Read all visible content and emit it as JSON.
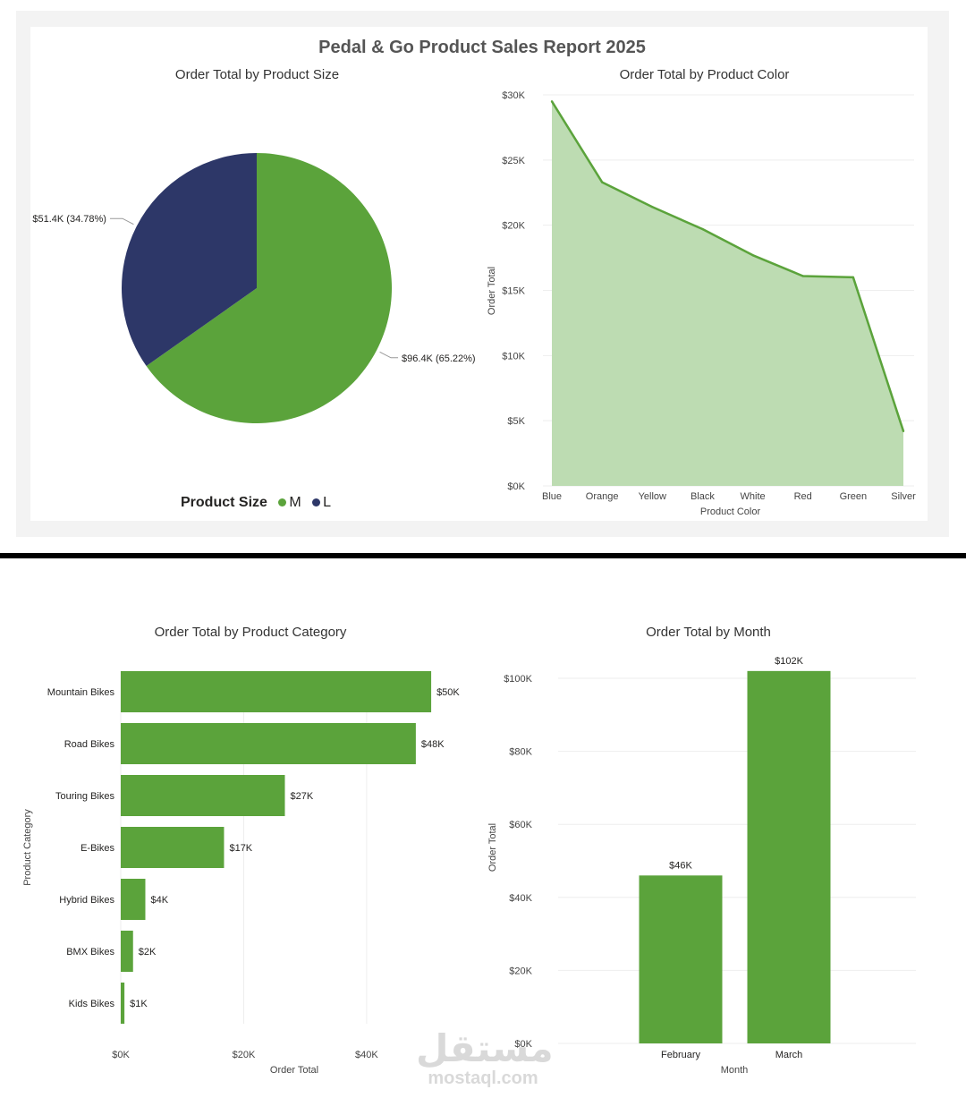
{
  "report_title": "Pedal & Go Product Sales Report 2025",
  "colors": {
    "green": "#5ba33b",
    "navy": "#2d3768",
    "area_fill": "#bddcb2",
    "grid": "#eeeeee"
  },
  "legend": {
    "title": "Product Size",
    "items": [
      "M",
      "L"
    ]
  },
  "watermark": {
    "arabic": "مستقل",
    "latin": "mostaql.com"
  },
  "chart_data": [
    {
      "type": "pie",
      "title": "Order Total by Product Size",
      "slices": [
        {
          "name": "M",
          "value": 96.4,
          "percent": 65.22,
          "label": "$96.4K (65.22%)",
          "color": "#5ba33b"
        },
        {
          "name": "L",
          "value": 51.4,
          "percent": 34.78,
          "label": "$51.4K (34.78%)",
          "color": "#2d3768"
        }
      ],
      "legend_position": "bottom"
    },
    {
      "type": "area",
      "title": "Order Total by Product Color",
      "xlabel": "Product Color",
      "ylabel": "Order Total",
      "categories": [
        "Blue",
        "Orange",
        "Yellow",
        "Black",
        "White",
        "Red",
        "Green",
        "Silver"
      ],
      "values": [
        29500,
        23300,
        21400,
        19700,
        17700,
        16100,
        16000,
        4200
      ],
      "ylim": [
        0,
        30000
      ],
      "yticks": [
        0,
        5000,
        10000,
        15000,
        20000,
        25000,
        30000
      ],
      "ytick_labels": [
        "$0K",
        "$5K",
        "$10K",
        "$15K",
        "$20K",
        "$25K",
        "$30K"
      ],
      "grid": true
    },
    {
      "type": "bar",
      "orientation": "horizontal",
      "title": "Order Total by Product Category",
      "xlabel": "Order Total",
      "ylabel": "Product Category",
      "categories": [
        "Mountain Bikes",
        "Road Bikes",
        "Touring Bikes",
        "E-Bikes",
        "Hybrid Bikes",
        "BMX Bikes",
        "Kids Bikes"
      ],
      "values": [
        50500,
        48000,
        26700,
        16800,
        4000,
        2000,
        600
      ],
      "data_labels": [
        "$50K",
        "$48K",
        "$27K",
        "$17K",
        "$4K",
        "$2K",
        "$1K"
      ],
      "xlim": [
        0,
        55000
      ],
      "xticks": [
        0,
        20000,
        40000
      ],
      "xtick_labels": [
        "$0K",
        "$20K",
        "$40K"
      ],
      "grid": true
    },
    {
      "type": "bar",
      "orientation": "vertical",
      "title": "Order Total by Month",
      "xlabel": "Month",
      "ylabel": "Order Total",
      "categories": [
        "February",
        "March"
      ],
      "values": [
        46000,
        102000
      ],
      "data_labels": [
        "$46K",
        "$102K"
      ],
      "ylim": [
        0,
        100000
      ],
      "yticks": [
        0,
        20000,
        40000,
        60000,
        80000,
        100000
      ],
      "ytick_labels": [
        "$0K",
        "$20K",
        "$40K",
        "$60K",
        "$80K",
        "$100K"
      ],
      "grid": true
    }
  ]
}
